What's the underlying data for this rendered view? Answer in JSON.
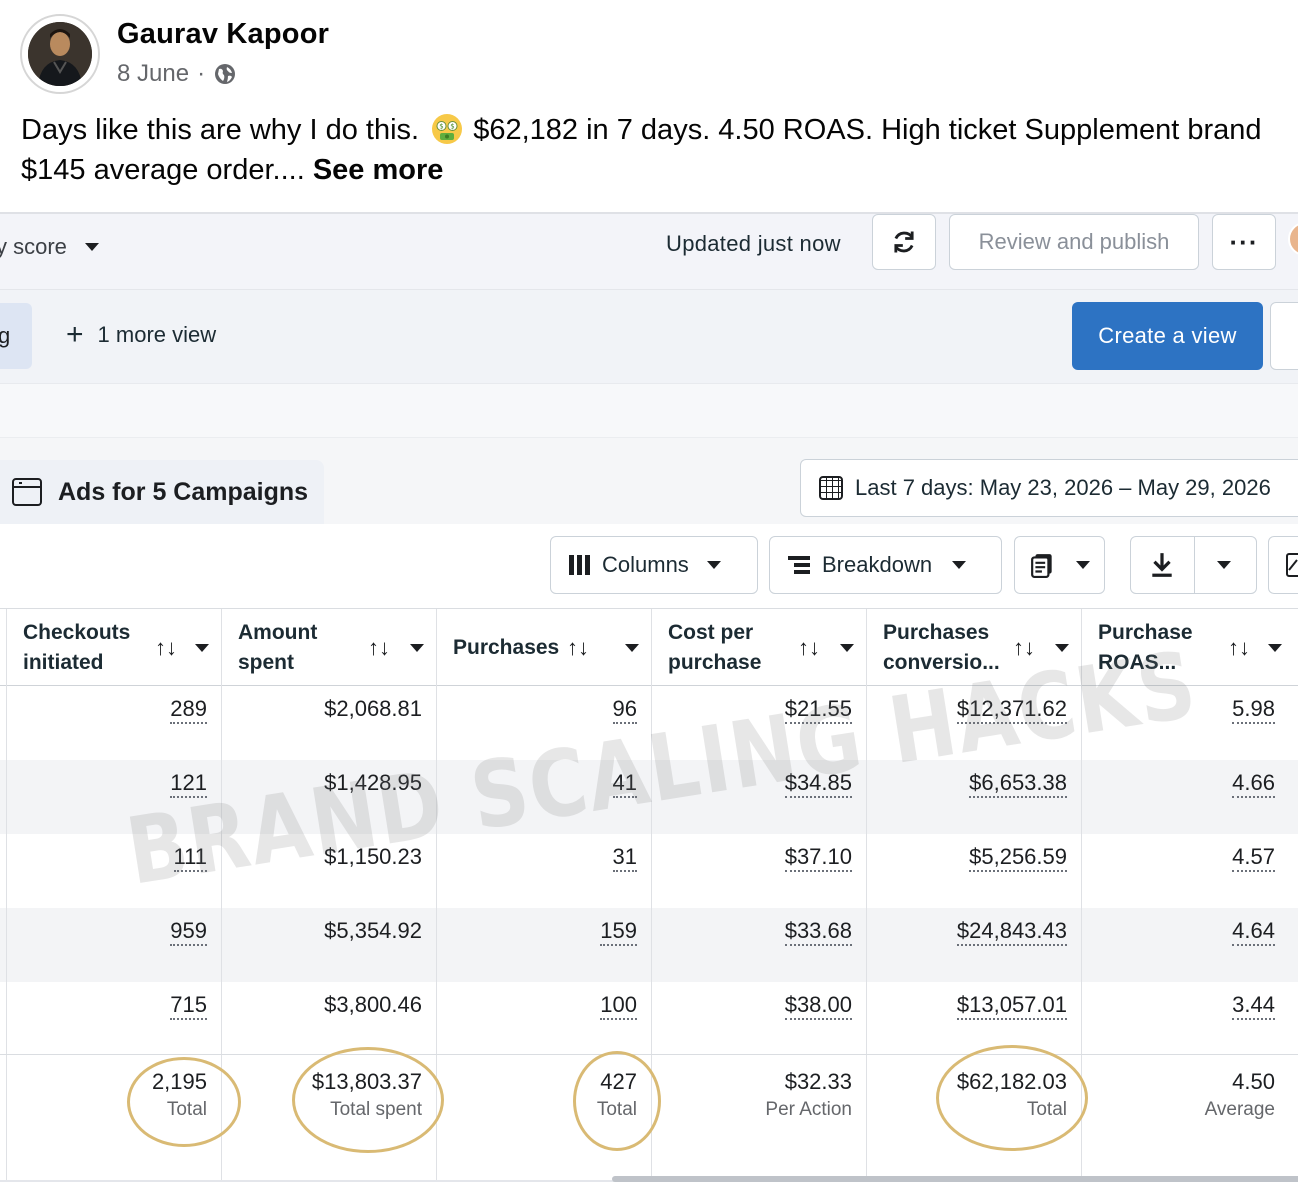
{
  "post": {
    "author": "Gaurav Kapoor",
    "date": "8 June",
    "separator": "·",
    "privacy_icon": "globe-icon",
    "text_line1_a": "Days like this are why I do this.",
    "emoji": "money-mouth-face",
    "text_line1_b": "$62,182 in 7 days. 4.50 ROAS. High ticket Supplement brand",
    "text_line2": "$145 average order....",
    "see_more": "See more"
  },
  "ads_manager": {
    "topbar": {
      "quality_label": "y score",
      "updated": "Updated just now",
      "review_publish": "Review and publish",
      "more_label": "···"
    },
    "viewbar": {
      "tab_fragment": "g",
      "more_view": "1 more view",
      "create_view": "Create a view"
    },
    "campaign_tab": "Ads for 5 Campaigns",
    "date_range": "Last 7 days: May 23, 2026 – May 29, 2026",
    "toolbar": {
      "columns": "Columns",
      "breakdown": "Breakdown"
    },
    "table": {
      "headers": [
        {
          "line1": "Checkouts",
          "line2": "initiated"
        },
        {
          "line1": "Amount",
          "line2": "spent"
        },
        {
          "line1": "Purchases",
          "line2": ""
        },
        {
          "line1": "Cost per",
          "line2": "purchase"
        },
        {
          "line1": "Purchases",
          "line2": "conversio..."
        },
        {
          "line1": "Purchase",
          "line2": "ROAS..."
        }
      ],
      "rows": [
        [
          "289",
          "$2,068.81",
          "96",
          "$21.55",
          "$12,371.62",
          "5.98"
        ],
        [
          "121",
          "$1,428.95",
          "41",
          "$34.85",
          "$6,653.38",
          "4.66"
        ],
        [
          "111",
          "$1,150.23",
          "31",
          "$37.10",
          "$5,256.59",
          "4.57"
        ],
        [
          "959",
          "$5,354.92",
          "159",
          "$33.68",
          "$24,843.43",
          "4.64"
        ],
        [
          "715",
          "$3,800.46",
          "100",
          "$38.00",
          "$13,057.01",
          "3.44"
        ]
      ],
      "totals": [
        {
          "value": "2,195",
          "label": "Total"
        },
        {
          "value": "$13,803.37",
          "label": "Total spent"
        },
        {
          "value": "427",
          "label": "Total"
        },
        {
          "value": "$32.33",
          "label": "Per Action"
        },
        {
          "value": "$62,182.03",
          "label": "Total"
        },
        {
          "value": "4.50",
          "label": "Average"
        }
      ]
    },
    "watermark": "BRAND SCALING HACKS",
    "highlight_color": "#d9ba74",
    "primary_button_color": "#2d73c3"
  }
}
